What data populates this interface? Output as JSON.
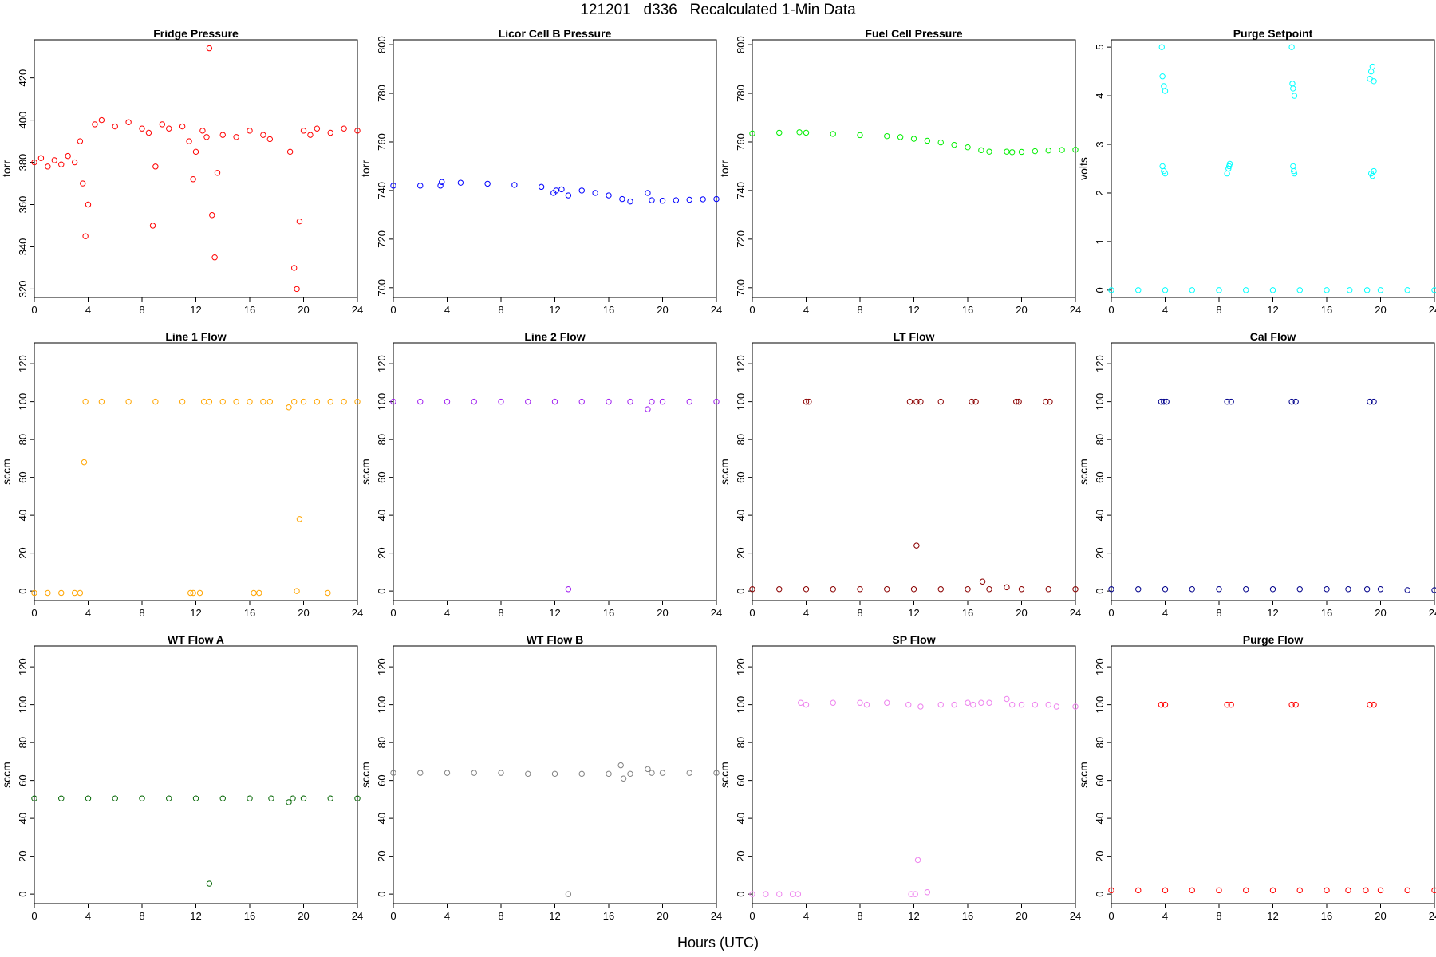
{
  "figure": {
    "title": "121201   d336   Recalculated 1-Min Data",
    "xlabel": "Hours (UTC)"
  },
  "chart_data": [
    {
      "type": "scatter",
      "title": "Fridge Pressure",
      "ylabel": "torr",
      "color": "#ff0000",
      "xlim": [
        0,
        24
      ],
      "ylim": [
        316,
        438
      ],
      "xticks": [
        0,
        4,
        8,
        12,
        16,
        20,
        24
      ],
      "yticks": [
        320,
        340,
        360,
        380,
        400,
        420
      ],
      "x": [
        0,
        0.5,
        1,
        1.5,
        2,
        2.5,
        3,
        3.4,
        3.6,
        3.8,
        4,
        4.5,
        5,
        6,
        7,
        8,
        8.5,
        8.8,
        9,
        9.5,
        10,
        11,
        11.5,
        11.8,
        12,
        12.5,
        12.8,
        13,
        13.2,
        13.4,
        13.6,
        14,
        15,
        16,
        17,
        17.5,
        19,
        19.3,
        19.5,
        19.7,
        20,
        20.5,
        21,
        22,
        23,
        24
      ],
      "y": [
        380,
        382,
        378,
        381,
        379,
        383,
        380,
        390,
        370,
        345,
        360,
        398,
        400,
        397,
        399,
        396,
        394,
        350,
        378,
        398,
        396,
        397,
        390,
        372,
        385,
        395,
        392,
        434,
        355,
        335,
        375,
        393,
        392,
        395,
        393,
        391,
        385,
        330,
        320,
        352,
        395,
        393,
        396,
        394,
        396,
        395
      ]
    },
    {
      "type": "scatter",
      "title": "Licor Cell B Pressure",
      "ylabel": "torr",
      "color": "#0000ff",
      "xlim": [
        0,
        24
      ],
      "ylim": [
        696,
        802
      ],
      "xticks": [
        0,
        4,
        8,
        12,
        16,
        20,
        24
      ],
      "yticks": [
        700,
        720,
        740,
        760,
        780,
        800
      ],
      "x": [
        0,
        2,
        3.5,
        3.6,
        5,
        7,
        9,
        11,
        11.9,
        12.1,
        12.5,
        13,
        14,
        15,
        16,
        17,
        17.6,
        18.9,
        19.2,
        20,
        21,
        22,
        23,
        24
      ],
      "y": [
        742,
        742,
        742,
        743.5,
        743.2,
        742.8,
        742.3,
        741.5,
        739,
        740,
        740.5,
        738,
        740,
        739,
        738,
        736.5,
        735.5,
        739,
        736,
        735.8,
        736,
        736.2,
        736.4,
        736.5
      ]
    },
    {
      "type": "scatter",
      "title": "Fuel Cell Pressure",
      "ylabel": "torr",
      "color": "#00ee00",
      "xlim": [
        0,
        24
      ],
      "ylim": [
        696,
        802
      ],
      "xticks": [
        0,
        4,
        8,
        12,
        16,
        20,
        24
      ],
      "yticks": [
        700,
        720,
        740,
        760,
        780,
        800
      ],
      "x": [
        0,
        2,
        3.5,
        4,
        6,
        8,
        10,
        11,
        12,
        13,
        14,
        15,
        16,
        17,
        17.6,
        18.9,
        19.3,
        20,
        21,
        22,
        23,
        24
      ],
      "y": [
        763.5,
        763.8,
        764,
        763.8,
        763.3,
        762.8,
        762.4,
        762,
        761.3,
        760.5,
        759.8,
        758.8,
        757.8,
        756.6,
        756,
        756,
        755.8,
        755.9,
        756.2,
        756.5,
        756.7,
        756.8
      ]
    },
    {
      "type": "scatter",
      "title": "Purge Setpoint",
      "ylabel": "volts",
      "color": "#00ffff",
      "xlim": [
        0,
        24
      ],
      "ylim": [
        -0.15,
        5.15
      ],
      "xticks": [
        0,
        4,
        8,
        12,
        16,
        20,
        24
      ],
      "yticks": [
        0,
        1,
        2,
        3,
        4,
        5
      ],
      "x": [
        0,
        2,
        4,
        6,
        8,
        10,
        12,
        14,
        16,
        17.7,
        19,
        20,
        22,
        24,
        3.75,
        3.8,
        3.9,
        4.0,
        3.8,
        3.9,
        4.0,
        8.6,
        8.7,
        8.8,
        8.75,
        13.4,
        13.45,
        13.5,
        13.6,
        13.5,
        13.55,
        13.6,
        19.2,
        19.3,
        19.4,
        19.5,
        19.3,
        19.4,
        19.5
      ],
      "y": [
        0,
        0,
        0,
        0,
        0,
        0,
        0,
        0,
        0,
        0,
        0,
        0,
        0,
        0,
        5,
        4.4,
        4.2,
        4.1,
        2.55,
        2.45,
        2.4,
        2.4,
        2.5,
        2.6,
        2.55,
        5,
        4.25,
        4.15,
        4.0,
        2.55,
        2.45,
        2.4,
        4.35,
        4.5,
        4.6,
        4.3,
        2.4,
        2.35,
        2.45
      ]
    },
    {
      "type": "scatter",
      "title": "Line 1 Flow",
      "ylabel": "sccm",
      "color": "#ffa500",
      "xlim": [
        0,
        24
      ],
      "ylim": [
        -5,
        131
      ],
      "xticks": [
        0,
        4,
        8,
        12,
        16,
        20,
        24
      ],
      "yticks": [
        0,
        20,
        40,
        60,
        80,
        100,
        120
      ],
      "x": [
        0,
        1,
        2,
        3,
        3.4,
        3.7,
        3.8,
        5,
        7,
        9,
        11,
        11.6,
        11.8,
        12.3,
        12.6,
        13,
        14,
        15,
        16,
        16.3,
        16.7,
        17,
        17.5,
        18.9,
        19.3,
        19.5,
        19.7,
        20,
        21,
        21.8,
        22,
        23,
        24
      ],
      "y": [
        -1,
        -1,
        -1,
        -1,
        -1,
        68,
        100,
        100,
        100,
        100,
        100,
        -1,
        -1,
        -1,
        100,
        100,
        100,
        100,
        100,
        -1,
        -1,
        100,
        100,
        97,
        100,
        0,
        38,
        100,
        100,
        -1,
        100,
        100,
        100
      ]
    },
    {
      "type": "scatter",
      "title": "Line 2 Flow",
      "ylabel": "sccm",
      "color": "#a020f0",
      "xlim": [
        0,
        24
      ],
      "ylim": [
        -5,
        131
      ],
      "xticks": [
        0,
        4,
        8,
        12,
        16,
        20,
        24
      ],
      "yticks": [
        0,
        20,
        40,
        60,
        80,
        100,
        120
      ],
      "x": [
        0,
        2,
        4,
        6,
        8,
        10,
        12,
        13,
        14,
        16,
        17.6,
        18.9,
        19.2,
        20,
        22,
        24
      ],
      "y": [
        100,
        100,
        100,
        100,
        100,
        100,
        100,
        1,
        100,
        100,
        100,
        96,
        100,
        100,
        100,
        100
      ]
    },
    {
      "type": "scatter",
      "title": "LT Flow",
      "ylabel": "sccm",
      "color": "#8b0000",
      "xlim": [
        0,
        24
      ],
      "ylim": [
        -5,
        131
      ],
      "xticks": [
        0,
        4,
        8,
        12,
        16,
        20,
        24
      ],
      "yticks": [
        0,
        20,
        40,
        60,
        80,
        100,
        120
      ],
      "x": [
        0,
        2,
        4,
        6,
        8,
        10,
        12,
        14,
        16,
        17.6,
        18.9,
        20,
        22,
        24,
        4.0,
        4.2,
        11.7,
        12.2,
        12.5,
        14,
        16.3,
        16.6,
        19.6,
        19.8,
        21.8,
        22.1,
        12.2,
        17.1
      ],
      "y": [
        1,
        1,
        1,
        1,
        1,
        1,
        1,
        1,
        1,
        1,
        2,
        1,
        1,
        1,
        100,
        100,
        100,
        100,
        100,
        100,
        100,
        100,
        100,
        100,
        100,
        100,
        24,
        5
      ]
    },
    {
      "type": "scatter",
      "title": "Cal Flow",
      "ylabel": "sccm",
      "color": "#00008b",
      "xlim": [
        0,
        24
      ],
      "ylim": [
        -5,
        131
      ],
      "xticks": [
        0,
        4,
        8,
        12,
        16,
        20,
        24
      ],
      "yticks": [
        0,
        20,
        40,
        60,
        80,
        100,
        120
      ],
      "x": [
        0,
        2,
        4,
        6,
        8,
        10,
        12,
        14,
        16,
        17.6,
        19,
        20,
        22,
        24,
        3.7,
        3.9,
        4.1,
        8.6,
        8.9,
        13.4,
        13.7,
        19.2,
        19.5
      ],
      "y": [
        1,
        1,
        1,
        1,
        1,
        1,
        1,
        1,
        1,
        1,
        1,
        1,
        0.5,
        0.5,
        100,
        100,
        100,
        100,
        100,
        100,
        100,
        100,
        100
      ]
    },
    {
      "type": "scatter",
      "title": "WT Flow A",
      "ylabel": "sccm",
      "color": "#006400",
      "xlim": [
        0,
        24
      ],
      "ylim": [
        -5,
        131
      ],
      "xticks": [
        0,
        4,
        8,
        12,
        16,
        20,
        24
      ],
      "yticks": [
        0,
        20,
        40,
        60,
        80,
        100,
        120
      ],
      "x": [
        0,
        2,
        4,
        6,
        8,
        10,
        12,
        13,
        14,
        16,
        17.6,
        18.9,
        19.2,
        20,
        22,
        24
      ],
      "y": [
        50.5,
        50.5,
        50.5,
        50.5,
        50.5,
        50.5,
        50.5,
        5.5,
        50.5,
        50.5,
        50.5,
        48.5,
        50.5,
        50.5,
        50.5,
        50.5
      ]
    },
    {
      "type": "scatter",
      "title": "WT Flow B",
      "ylabel": "sccm",
      "color": "#808080",
      "xlim": [
        0,
        24
      ],
      "ylim": [
        -5,
        131
      ],
      "xticks": [
        0,
        4,
        8,
        12,
        16,
        20,
        24
      ],
      "yticks": [
        0,
        20,
        40,
        60,
        80,
        100,
        120
      ],
      "x": [
        0,
        2,
        4,
        6,
        8,
        10,
        12,
        13,
        14,
        16,
        16.9,
        17.1,
        17.6,
        18.9,
        19.2,
        20,
        22,
        24
      ],
      "y": [
        64,
        64,
        64,
        64,
        64,
        63.5,
        63.5,
        0,
        63.5,
        63.5,
        68,
        61,
        63.5,
        66,
        64,
        64,
        64,
        64
      ]
    },
    {
      "type": "scatter",
      "title": "SP Flow",
      "ylabel": "sccm",
      "color": "#ee82ee",
      "xlim": [
        0,
        24
      ],
      "ylim": [
        -5,
        131
      ],
      "xticks": [
        0,
        4,
        8,
        12,
        16,
        20,
        24
      ],
      "yticks": [
        0,
        20,
        40,
        60,
        80,
        100,
        120
      ],
      "x": [
        0,
        1,
        2,
        3,
        3.4,
        3.6,
        4,
        6,
        8,
        8.5,
        10,
        11.6,
        11.8,
        12.1,
        12.3,
        12.5,
        13,
        14,
        15,
        16,
        16.4,
        17,
        17.6,
        18.9,
        19.3,
        20,
        21,
        22,
        22.6,
        24
      ],
      "y": [
        0,
        0,
        0,
        0,
        0,
        101,
        100,
        101,
        101,
        100,
        101,
        100,
        0,
        0,
        18,
        99,
        1,
        100,
        100,
        101,
        100,
        101,
        101,
        103,
        100,
        100,
        100,
        100,
        99,
        99
      ]
    },
    {
      "type": "scatter",
      "title": "Purge Flow",
      "ylabel": "sccm",
      "color": "#ff0000",
      "xlim": [
        0,
        24
      ],
      "ylim": [
        -5,
        131
      ],
      "xticks": [
        0,
        4,
        8,
        12,
        16,
        20,
        24
      ],
      "yticks": [
        0,
        20,
        40,
        60,
        80,
        100,
        120
      ],
      "x": [
        0,
        2,
        4,
        6,
        8,
        10,
        12,
        14,
        16,
        17.6,
        18.9,
        20,
        22,
        24,
        3.7,
        4.0,
        8.6,
        8.9,
        13.4,
        13.7,
        19.2,
        19.5
      ],
      "y": [
        2,
        2,
        2,
        2,
        2,
        2,
        2,
        2,
        2,
        2,
        2,
        2,
        2,
        2,
        100,
        100,
        100,
        100,
        100,
        100,
        100,
        100
      ]
    }
  ]
}
